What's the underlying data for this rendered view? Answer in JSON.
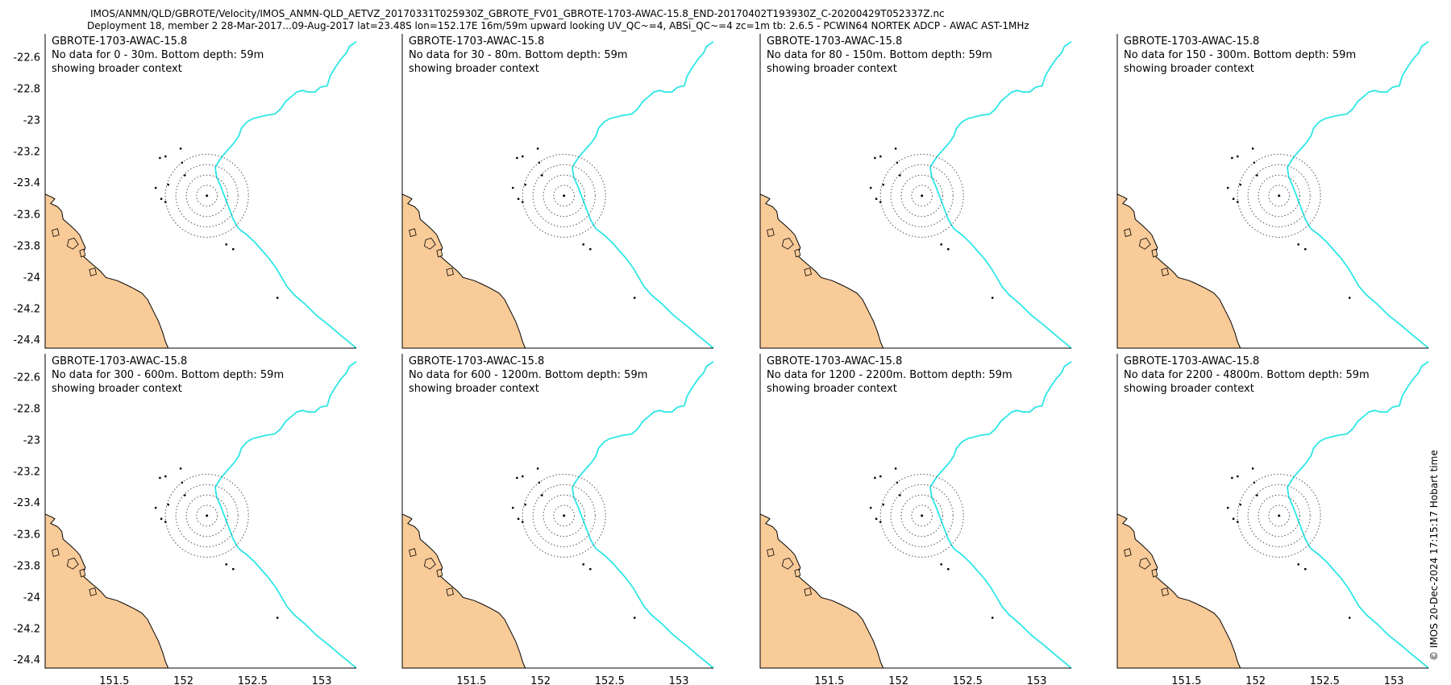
{
  "header": {
    "line1": "IMOS/ANMN/QLD/GBROTE/Velocity/IMOS_ANMN-QLD_AETVZ_20170331T025930Z_GBROTE_FV01_GBROTE-1703-AWAC-15.8_END-20170402T193930Z_C-20200429T052337Z.nc",
    "line2": "Deployment 18, member 2 28-Mar-2017...09-Aug-2017 lat=23.48S lon=152.17E 16m/59m upward looking UV_QC~=4, ABSi_QC~=4 zc=1m tb: 2.6.5 - PCWIN64 NORTEK ADCP - AWAC AST-1MHz"
  },
  "credit": "© IMOS 20-Dec-2024 17:15:17 Hobart time",
  "colors": {
    "land": "#f9cb98",
    "shelf_edge": "#2ee6e6",
    "rings": "#555555"
  },
  "map": {
    "lon_range": [
      151.0,
      153.25
    ],
    "lat_range": [
      -24.45,
      -22.45
    ],
    "center": {
      "lon": 152.17,
      "lat": -23.48
    },
    "ring_radii_deg": [
      0.075,
      0.15,
      0.225,
      0.3
    ],
    "x_ticks": [
      "151.5",
      "152",
      "152.5",
      "153"
    ],
    "y_ticks": [
      "-22.6",
      "-22.8",
      "-23",
      "-23.2",
      "-23.4",
      "-23.6",
      "-23.8",
      "-24",
      "-24.2",
      "-24.4"
    ]
  },
  "panels": [
    {
      "title": "GBROTE-1703-AWAC-15.8",
      "line2": "No data for 0 - 30m. Bottom depth: 59m",
      "line3": "showing broader context"
    },
    {
      "title": "GBROTE-1703-AWAC-15.8",
      "line2": "No data for 30 - 80m. Bottom depth: 59m",
      "line3": "showing broader context"
    },
    {
      "title": "GBROTE-1703-AWAC-15.8",
      "line2": "No data for 80 - 150m. Bottom depth: 59m",
      "line3": "showing broader context"
    },
    {
      "title": "GBROTE-1703-AWAC-15.8",
      "line2": "No data for 150 - 300m. Bottom depth: 59m",
      "line3": "showing broader context"
    },
    {
      "title": "GBROTE-1703-AWAC-15.8",
      "line2": "No data for 300 - 600m. Bottom depth: 59m",
      "line3": "showing broader context"
    },
    {
      "title": "GBROTE-1703-AWAC-15.8",
      "line2": "No data for 600 - 1200m. Bottom depth: 59m",
      "line3": "showing broader context"
    },
    {
      "title": "GBROTE-1703-AWAC-15.8",
      "line2": "No data for 1200 - 2200m. Bottom depth: 59m",
      "line3": "showing broader context"
    },
    {
      "title": "GBROTE-1703-AWAC-15.8",
      "line2": "No data for 2200 - 4800m. Bottom depth: 59m",
      "line3": "showing broader context"
    }
  ]
}
